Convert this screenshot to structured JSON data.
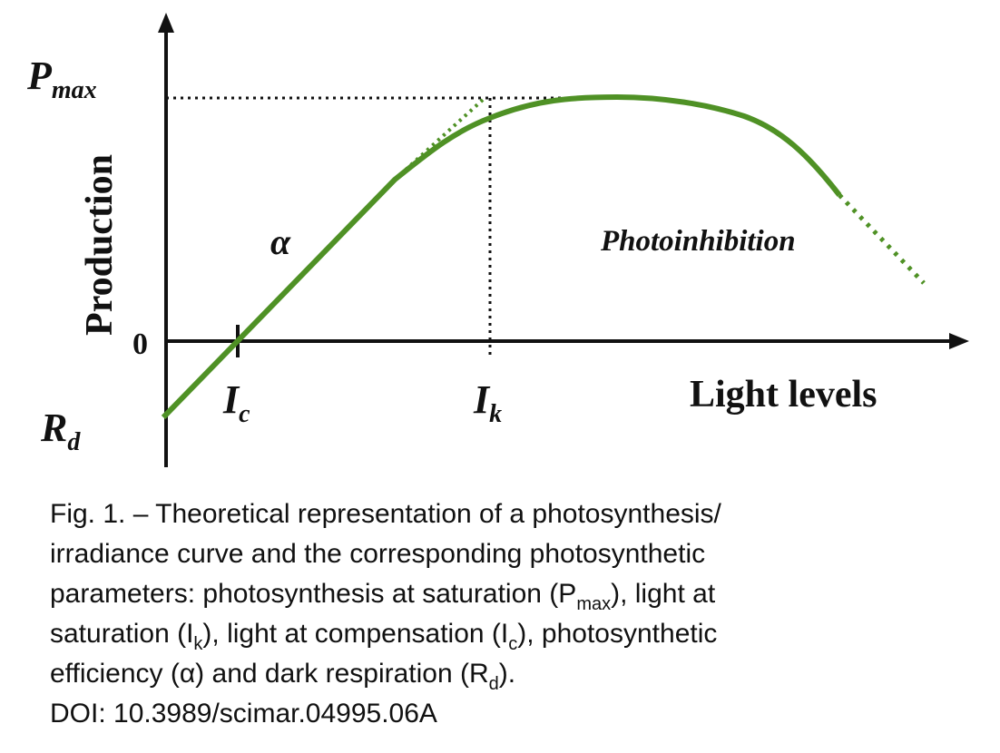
{
  "diagram": {
    "pmax": {
      "symbol": "P",
      "subscript": "max"
    },
    "y_axis_label": "Production",
    "zero_label": "0",
    "alpha_label": "α",
    "photoinhibition_label": "Photoinhibition",
    "ic": {
      "symbol": "I",
      "subscript": "c"
    },
    "ik": {
      "symbol": "I",
      "subscript": "k"
    },
    "x_axis_label": "Light levels",
    "rd": {
      "symbol": "R",
      "subscript": "d"
    }
  },
  "caption": {
    "lines": [
      [
        "Fig. 1. – Theoretical representation of a photosynthesis/"
      ],
      [
        "irradiance curve and the corresponding photosynthetic"
      ],
      [
        "parameters: photosynthesis at saturation (P",
        "max",
        "), light at"
      ],
      [
        "saturation (I",
        "k",
        "), light at compensation (I",
        "c",
        "), photosynthetic"
      ],
      [
        "efficiency (α) and dark respiration (R",
        "d",
        ")."
      ],
      [
        "DOI: 10.3989/scimar.04995.06A"
      ]
    ]
  }
}
